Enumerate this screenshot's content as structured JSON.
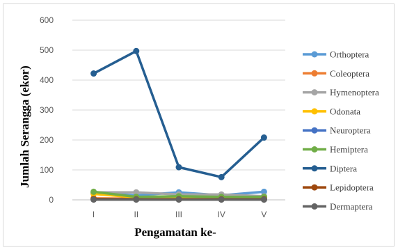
{
  "chart_data": {
    "type": "line",
    "title": "",
    "xlabel": "Pengamatan ke-",
    "ylabel": "Jumlah Serangga (ekor)",
    "categories": [
      "I",
      "II",
      "III",
      "IV",
      "V"
    ],
    "ylim": [
      0,
      600
    ],
    "yticks": [
      0,
      100,
      200,
      300,
      400,
      500,
      600
    ],
    "grid": true,
    "legend_position": "right",
    "series": [
      {
        "name": "Orthoptera",
        "color": "#5B9BD5",
        "values": [
          22,
          15,
          25,
          15,
          27
        ]
      },
      {
        "name": "Coleoptera",
        "color": "#ED7D31",
        "values": [
          5,
          4,
          3,
          3,
          5
        ]
      },
      {
        "name": "Hymenoptera",
        "color": "#A5A5A5",
        "values": [
          25,
          25,
          18,
          18,
          12
        ]
      },
      {
        "name": "Odonata",
        "color": "#FFC000",
        "values": [
          20,
          8,
          6,
          6,
          8
        ]
      },
      {
        "name": "Neuroptera",
        "color": "#4472C4",
        "values": [
          2,
          2,
          2,
          2,
          2
        ]
      },
      {
        "name": "Hemiptera",
        "color": "#70AD47",
        "values": [
          27,
          10,
          12,
          10,
          10
        ]
      },
      {
        "name": "Diptera",
        "color": "#255E91",
        "values": [
          422,
          497,
          109,
          76,
          208
        ]
      },
      {
        "name": "Lepidoptera",
        "color": "#9E480E",
        "values": [
          3,
          2,
          2,
          2,
          2
        ]
      },
      {
        "name": "Dermaptera",
        "color": "#636363",
        "values": [
          1,
          1,
          1,
          1,
          1
        ]
      }
    ]
  }
}
